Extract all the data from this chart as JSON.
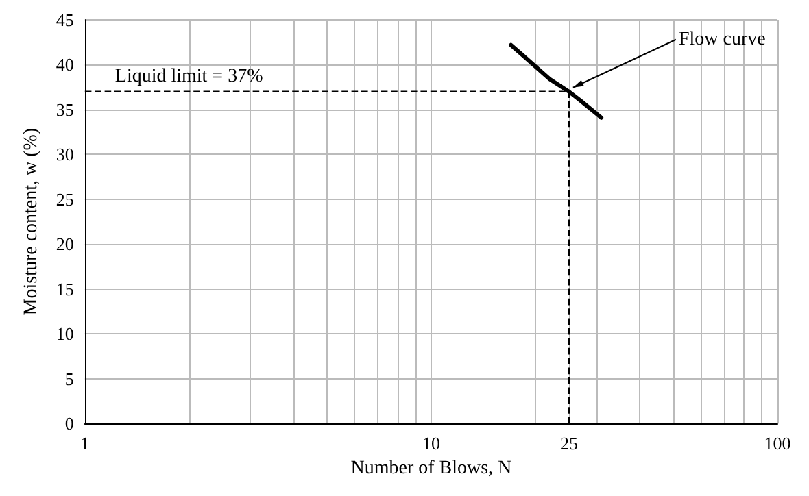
{
  "chart_data": {
    "type": "line",
    "xlabel": "Number of Blows, N",
    "ylabel": "Moisture content, w (%)",
    "series": [
      {
        "color": "#000000",
        "x": [
          17,
          22,
          25,
          27,
          31
        ],
        "values": [
          42.2,
          38.4,
          37,
          36,
          34.1
        ]
      }
    ],
    "log": "x",
    "xlim": [
      1,
      100
    ],
    "ylim": [
      0,
      45
    ],
    "xticks": [
      1,
      {
        "value": 2,
        "label": null
      },
      {
        "value": 3,
        "label": null
      },
      {
        "value": 4,
        "label": null
      },
      {
        "value": 5,
        "label": null
      },
      {
        "value": 6,
        "label": null
      },
      {
        "value": 7,
        "label": null
      },
      {
        "value": 8,
        "label": null
      },
      {
        "value": 9,
        "label": null
      },
      10,
      {
        "value": 20,
        "label": null
      },
      25,
      {
        "value": 30,
        "label": null
      },
      {
        "value": 40,
        "label": null
      },
      {
        "value": 50,
        "label": null
      },
      {
        "value": 60,
        "label": null
      },
      {
        "value": 70,
        "label": null
      },
      {
        "value": 80,
        "label": null
      },
      {
        "value": 90,
        "label": null
      },
      100
    ],
    "yticks": [
      0,
      5,
      10,
      15,
      20,
      25,
      30,
      35,
      40,
      45
    ],
    "grid": true,
    "marker": "none",
    "line_style": "solid",
    "ref_lines": [
      {
        "axis": "y",
        "value": 37,
        "label": "Liquid limit = 37%",
        "line_style": "dashed",
        "color": "#000000"
      },
      {
        "axis": "x",
        "value": 25,
        "line_style": "dashed",
        "color": "#000000"
      }
    ],
    "annotations": [
      {
        "text": "Flow curve",
        "x": 25,
        "y": 37
      }
    ]
  }
}
